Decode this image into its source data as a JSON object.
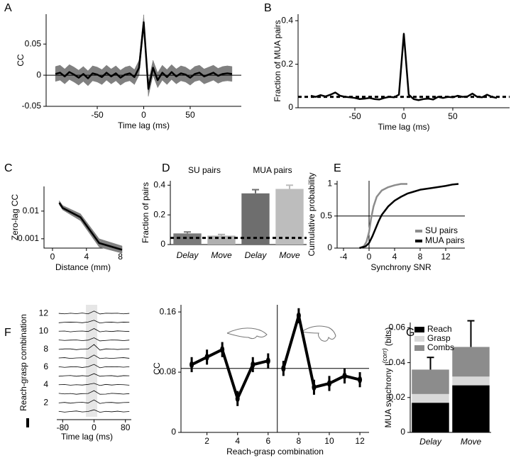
{
  "chart_data": [
    {
      "type": "line",
      "panel": "A",
      "xlabel": "Time lag (ms)",
      "ylabel": "CC",
      "x": [
        -95,
        -90,
        -85,
        -80,
        -75,
        -70,
        -65,
        -60,
        -55,
        -50,
        -45,
        -40,
        -35,
        -30,
        -25,
        -20,
        -15,
        -10,
        -5,
        0,
        5,
        10,
        15,
        20,
        25,
        30,
        35,
        40,
        45,
        50,
        55,
        60,
        65,
        70,
        75,
        80,
        85,
        90,
        95
      ],
      "values": [
        0.002,
        0.004,
        -0.002,
        0.005,
        0.001,
        -0.004,
        0.002,
        -0.005,
        0.003,
        0.001,
        -0.003,
        0.004,
        -0.002,
        0.003,
        -0.004,
        0.001,
        0.003,
        -0.003,
        0.012,
        0.085,
        -0.022,
        0.012,
        -0.008,
        0.004,
        -0.003,
        0.005,
        -0.002,
        0.003,
        0.001,
        -0.004,
        0.002,
        0.004,
        -0.002,
        0.001,
        0.004,
        -0.001,
        0.002,
        0.003,
        0.002
      ],
      "error": 0.012,
      "color": "#000000",
      "band_color": "#808080",
      "xlim": [
        -105,
        105
      ],
      "ylim": [
        -0.05,
        0.098
      ],
      "xticks": [
        -50,
        0,
        50
      ],
      "yticks": [
        -0.05,
        0,
        0.05
      ],
      "reference": 0
    },
    {
      "type": "line",
      "panel": "B",
      "xlabel": "Time lag (ms)",
      "ylabel": "Fraction of MUA pairs",
      "x": [
        -95,
        -90,
        -85,
        -80,
        -75,
        -70,
        -65,
        -60,
        -55,
        -50,
        -45,
        -40,
        -35,
        -30,
        -25,
        -20,
        -15,
        -10,
        -5,
        0,
        5,
        10,
        15,
        20,
        25,
        30,
        35,
        40,
        45,
        50,
        55,
        60,
        65,
        70,
        75,
        80,
        85,
        90,
        95
      ],
      "values": [
        0.055,
        0.05,
        0.058,
        0.052,
        0.06,
        0.07,
        0.055,
        0.05,
        0.048,
        0.045,
        0.04,
        0.042,
        0.045,
        0.04,
        0.038,
        0.045,
        0.05,
        0.048,
        0.06,
        0.34,
        0.06,
        0.04,
        0.035,
        0.04,
        0.042,
        0.038,
        0.05,
        0.045,
        0.05,
        0.048,
        0.055,
        0.05,
        0.052,
        0.065,
        0.05,
        0.048,
        0.06,
        0.05,
        0.045
      ],
      "color": "#000000",
      "xlim": [
        -108,
        108
      ],
      "ylim": [
        0,
        0.43
      ],
      "xticks": [
        -50,
        0,
        50
      ],
      "yticks": [
        0,
        0.2,
        0.4
      ],
      "reference": 0.05,
      "reference_dashed": true
    },
    {
      "type": "line",
      "panel": "C",
      "xlabel": "Distance (mm)",
      "ylabel": "Zero-lag CC",
      "log_scale": true,
      "x": [
        0.8,
        1.2,
        3.3,
        5.5,
        8.2
      ],
      "values": [
        0.02,
        0.013,
        0.006,
        0.0007,
        0.0004
      ],
      "lower": [
        0.017,
        0.011,
        0.0045,
        0.0005,
        0.0003
      ],
      "upper": [
        0.024,
        0.016,
        0.008,
        0.001,
        0.00055
      ],
      "color": "#000000",
      "band_color": "#808080",
      "xlim": [
        -1,
        8.2
      ],
      "ylim": [
        0.00046,
        0.078
      ],
      "xticks": [
        0,
        4,
        8
      ],
      "yticks": [
        0.001,
        0.01
      ]
    },
    {
      "type": "bar",
      "panel": "D",
      "ylabel": "Fraction of pairs",
      "group_labels": [
        "SU pairs",
        "MUA pairs"
      ],
      "categories": [
        "Delay",
        "Move",
        "Delay",
        "Move"
      ],
      "values": [
        0.075,
        0.06,
        0.345,
        0.375
      ],
      "errors": [
        0.01,
        0.008,
        0.025,
        0.025
      ],
      "colors": [
        "#7a7a7a",
        "#b0b0b0",
        "#6e6e6e",
        "#bdbdbd"
      ],
      "ylim": [
        0,
        0.43
      ],
      "yticks": [
        0,
        0.2,
        0.4
      ],
      "reference": 0.045,
      "reference_dashed": true
    },
    {
      "type": "line",
      "panel": "E",
      "xlabel": "Synchrony SNR",
      "ylabel": "Cumulative probability",
      "series": [
        {
          "name": "SU pairs",
          "color": "#8c8c8c",
          "x": [
            -1.5,
            -0.8,
            -0.4,
            0,
            0.3,
            0.7,
            1.2,
            2,
            3,
            4,
            5,
            6
          ],
          "values": [
            0,
            0.03,
            0.1,
            0.25,
            0.45,
            0.65,
            0.8,
            0.9,
            0.95,
            0.98,
            1,
            1
          ]
        },
        {
          "name": "MUA pairs",
          "color": "#000000",
          "x": [
            -1.5,
            -0.5,
            0,
            0.5,
            1,
            1.5,
            2,
            3,
            4,
            5,
            6,
            7,
            8,
            10,
            12,
            13,
            14
          ],
          "values": [
            0,
            0.03,
            0.08,
            0.18,
            0.3,
            0.42,
            0.52,
            0.65,
            0.74,
            0.8,
            0.85,
            0.88,
            0.91,
            0.94,
            0.97,
            0.99,
            1
          ]
        }
      ],
      "legend": "lower right",
      "xlim": [
        -5,
        15
      ],
      "ylim": [
        0,
        1.05
      ],
      "xticks": [
        -4,
        0,
        4,
        8,
        12
      ],
      "yticks": [
        0,
        0.5,
        1
      ],
      "reference": 0.5,
      "reference_x": 0
    },
    {
      "type": "traces",
      "panel": "F",
      "xlabel": "Time lag (ms)",
      "ylabel": "Reach-grasp combination",
      "x": [
        -90,
        -75,
        -60,
        -45,
        -30,
        -15,
        0,
        15,
        30,
        45,
        60,
        75,
        90
      ],
      "traces": [
        [
          0.002,
          -0.003,
          0.001,
          0.004,
          -0.002,
          0.001,
          0.012,
          -0.004,
          0.002,
          -0.001,
          0.003,
          -0.002,
          0.001
        ],
        [
          -0.001,
          0.002,
          -0.003,
          0.001,
          0.003,
          -0.002,
          0.018,
          -0.005,
          0.001,
          0.002,
          -0.002,
          0.001,
          0.002
        ],
        [
          0.003,
          -0.001,
          0.002,
          -0.003,
          0.001,
          0.002,
          0.02,
          -0.003,
          -0.002,
          0.003,
          0.001,
          -0.002,
          0.001
        ],
        [
          0.001,
          0.002,
          -0.002,
          0.001,
          -0.001,
          0.003,
          0.01,
          -0.004,
          0.003,
          -0.001,
          0.002,
          0.001,
          -0.002
        ],
        [
          -0.002,
          0.001,
          0.003,
          -0.002,
          0.002,
          -0.001,
          0.015,
          -0.002,
          0.001,
          0.002,
          -0.003,
          0.002,
          0.001
        ],
        [
          0.002,
          -0.002,
          0.001,
          0.002,
          -0.003,
          0.002,
          0.017,
          -0.005,
          0.002,
          0.001,
          0.002,
          -0.001,
          0.002
        ],
        [
          0.001,
          0.003,
          -0.002,
          0.001,
          0.002,
          -0.002,
          0.02,
          -0.003,
          0.001,
          -0.002,
          0.001,
          0.003,
          -0.001
        ],
        [
          -0.001,
          0.002,
          0.002,
          -0.003,
          0.001,
          0.002,
          0.03,
          -0.006,
          0.002,
          0.001,
          -0.002,
          0.001,
          0.002
        ],
        [
          0.002,
          -0.001,
          0.001,
          0.002,
          -0.002,
          0.001,
          0.016,
          -0.004,
          -0.001,
          0.002,
          0.001,
          -0.002,
          0.001
        ],
        [
          0.001,
          0.002,
          -0.003,
          0.001,
          0.002,
          -0.001,
          0.018,
          -0.003,
          0.002,
          -0.001,
          0.003,
          0.001,
          -0.001
        ],
        [
          -0.002,
          0.001,
          0.002,
          0.001,
          -0.002,
          0.003,
          0.014,
          -0.004,
          0.001,
          0.002,
          -0.001,
          0.002,
          0.001
        ],
        [
          0.001,
          -0.002,
          0.002,
          -0.001,
          0.003,
          -0.002,
          0.016,
          -0.003,
          0.002,
          0.001,
          0.002,
          -0.002,
          0.001
        ]
      ],
      "xlim": [
        -95,
        95
      ],
      "ylim": [
        0.5,
        12.5
      ],
      "xticks": [
        -80,
        0,
        80
      ],
      "yticks": [
        2,
        4,
        6,
        8,
        10,
        12
      ]
    },
    {
      "type": "line",
      "xlabel": "Reach-grasp combination",
      "ylabel": "CC",
      "x": [
        1,
        2,
        3,
        4,
        5,
        6,
        7,
        8,
        9,
        10,
        11,
        12
      ],
      "values": [
        0.09,
        0.1,
        0.11,
        0.045,
        0.09,
        0.095,
        0.085,
        0.155,
        0.06,
        0.065,
        0.075,
        0.07
      ],
      "errors": [
        0.01,
        0.01,
        0.01,
        0.01,
        0.01,
        0.01,
        0.01,
        0.01,
        0.01,
        0.01,
        0.01,
        0.01
      ],
      "color": "#000000",
      "xlim": [
        0.3,
        12.6
      ],
      "ylim": [
        0,
        0.1695
      ],
      "xticks": [
        2,
        4,
        6,
        8,
        10,
        12
      ],
      "yticks": [
        0,
        0.08,
        0.16
      ],
      "reference": 0.085,
      "reference_x": 6.6,
      "break_at_reference_x": true
    },
    {
      "type": "stacked_bar",
      "panel": "G",
      "ylabel": "MUA synchrony I",
      "ylabel_superscript": "(corr)",
      "ylabel_unit": "(bits)",
      "categories": [
        "Delay",
        "Move"
      ],
      "series": [
        {
          "name": "Reach",
          "color": "#000000",
          "values": [
            0.017,
            0.027
          ]
        },
        {
          "name": "Grasp",
          "color": "#d9d9d9",
          "values": [
            0.005,
            0.005
          ]
        },
        {
          "name": "Combs",
          "color": "#8c8c8c",
          "values": [
            0.014,
            0.017
          ]
        }
      ],
      "errors": [
        0.007,
        0.015
      ],
      "legend": "upper left",
      "ylim": [
        0,
        0.063
      ],
      "yticks": [
        0,
        0.02,
        0.04,
        0.06
      ]
    }
  ]
}
